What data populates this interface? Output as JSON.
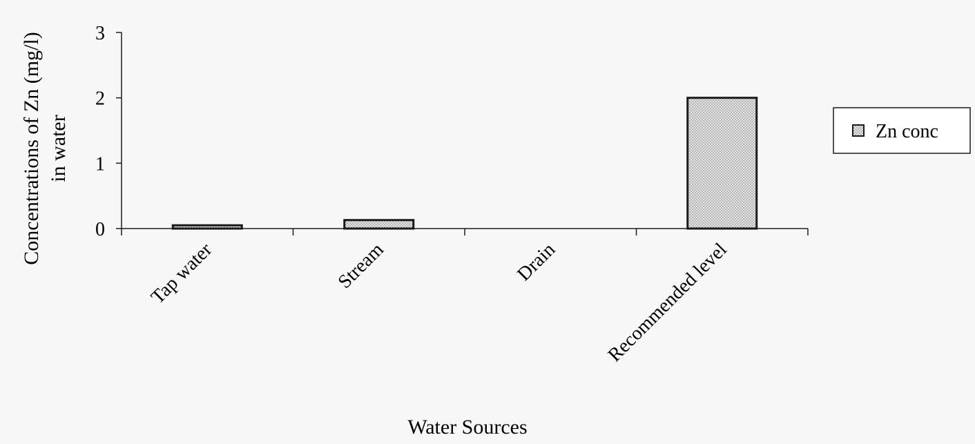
{
  "chart_data": {
    "type": "bar",
    "title": "",
    "categories": [
      "Tap water",
      "Stream",
      "Drain",
      "Recommended level"
    ],
    "series": [
      {
        "name": "Zn conc",
        "values": [
          0.05,
          0.13,
          0,
          2
        ]
      }
    ],
    "xlabel": "Water Sources",
    "ylabel_lines": [
      "Concentrations of Zn (mg/l)",
      "in water"
    ],
    "yticks": [
      0,
      1,
      2,
      3
    ],
    "ylim": [
      0,
      3
    ],
    "grid": false,
    "legend": "right",
    "colors": {
      "bar_fill": "#e6e6e6",
      "bar_stroke": "#1a1a1a",
      "dots": "#777777"
    }
  }
}
